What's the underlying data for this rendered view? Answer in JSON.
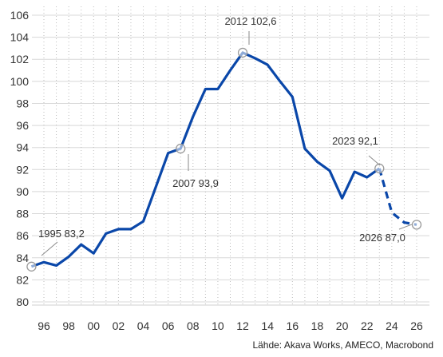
{
  "chart_data": {
    "type": "line",
    "title": "",
    "xlabel": "",
    "ylabel": "",
    "ylim": [
      80,
      106
    ],
    "xlim": [
      1995,
      2026.6
    ],
    "grid": {
      "x": "dotted-vertical",
      "y": "horizontal"
    },
    "y_ticks": [
      80,
      82,
      84,
      86,
      88,
      90,
      92,
      94,
      96,
      98,
      100,
      102,
      104,
      106
    ],
    "y_tick_labels": [
      "80",
      "82",
      "84",
      "86",
      "88",
      "90",
      "92",
      "94",
      "96",
      "98",
      "100",
      "102",
      "104",
      "106"
    ],
    "x_ticks": [
      1996,
      1998,
      2000,
      2002,
      2004,
      2006,
      2008,
      2010,
      2012,
      2014,
      2016,
      2018,
      2020,
      2022,
      2024,
      2026
    ],
    "x_tick_labels": [
      "96",
      "98",
      "00",
      "02",
      "04",
      "06",
      "08",
      "10",
      "12",
      "14",
      "16",
      "18",
      "20",
      "22",
      "24",
      "26"
    ],
    "series": [
      {
        "style": "solid",
        "x": [
          1995,
          1996,
          1997,
          1998,
          1999,
          2000,
          2001,
          2002,
          2003,
          2004,
          2005,
          2006,
          2007,
          2008,
          2009,
          2010,
          2011,
          2012,
          2013,
          2014,
          2015,
          2016,
          2017,
          2018,
          2019,
          2020,
          2021,
          2022,
          2023
        ],
        "y": [
          83.2,
          83.6,
          83.3,
          84.1,
          85.2,
          84.4,
          86.2,
          86.6,
          86.6,
          87.3,
          90.4,
          93.5,
          93.9,
          96.8,
          99.3,
          99.3,
          101.0,
          102.6,
          102.1,
          101.5,
          100.0,
          98.6,
          93.9,
          92.7,
          91.9,
          89.4,
          91.8,
          91.3,
          92.1
        ]
      },
      {
        "style": "dashed",
        "x": [
          2023,
          2024,
          2025,
          2026
        ],
        "y": [
          92.1,
          88.1,
          87.2,
          87.0
        ]
      }
    ],
    "annotations": [
      {
        "text": "1995 83,2",
        "x": 1995,
        "y": 83.2
      },
      {
        "text": "2007 93,9",
        "x": 2007,
        "y": 93.9
      },
      {
        "text": "2012 102,6",
        "x": 2012,
        "y": 102.6
      },
      {
        "text": "2023 92,1",
        "x": 2023,
        "y": 92.1
      },
      {
        "text": "2026 87,0",
        "x": 2026,
        "y": 87.0
      }
    ],
    "source": "Lähde: Akava Works, AMECO, Macrobond"
  },
  "colors": {
    "line": "#0a47a9",
    "grid": "#d8d8d8",
    "marker": "#9a9a9a"
  }
}
